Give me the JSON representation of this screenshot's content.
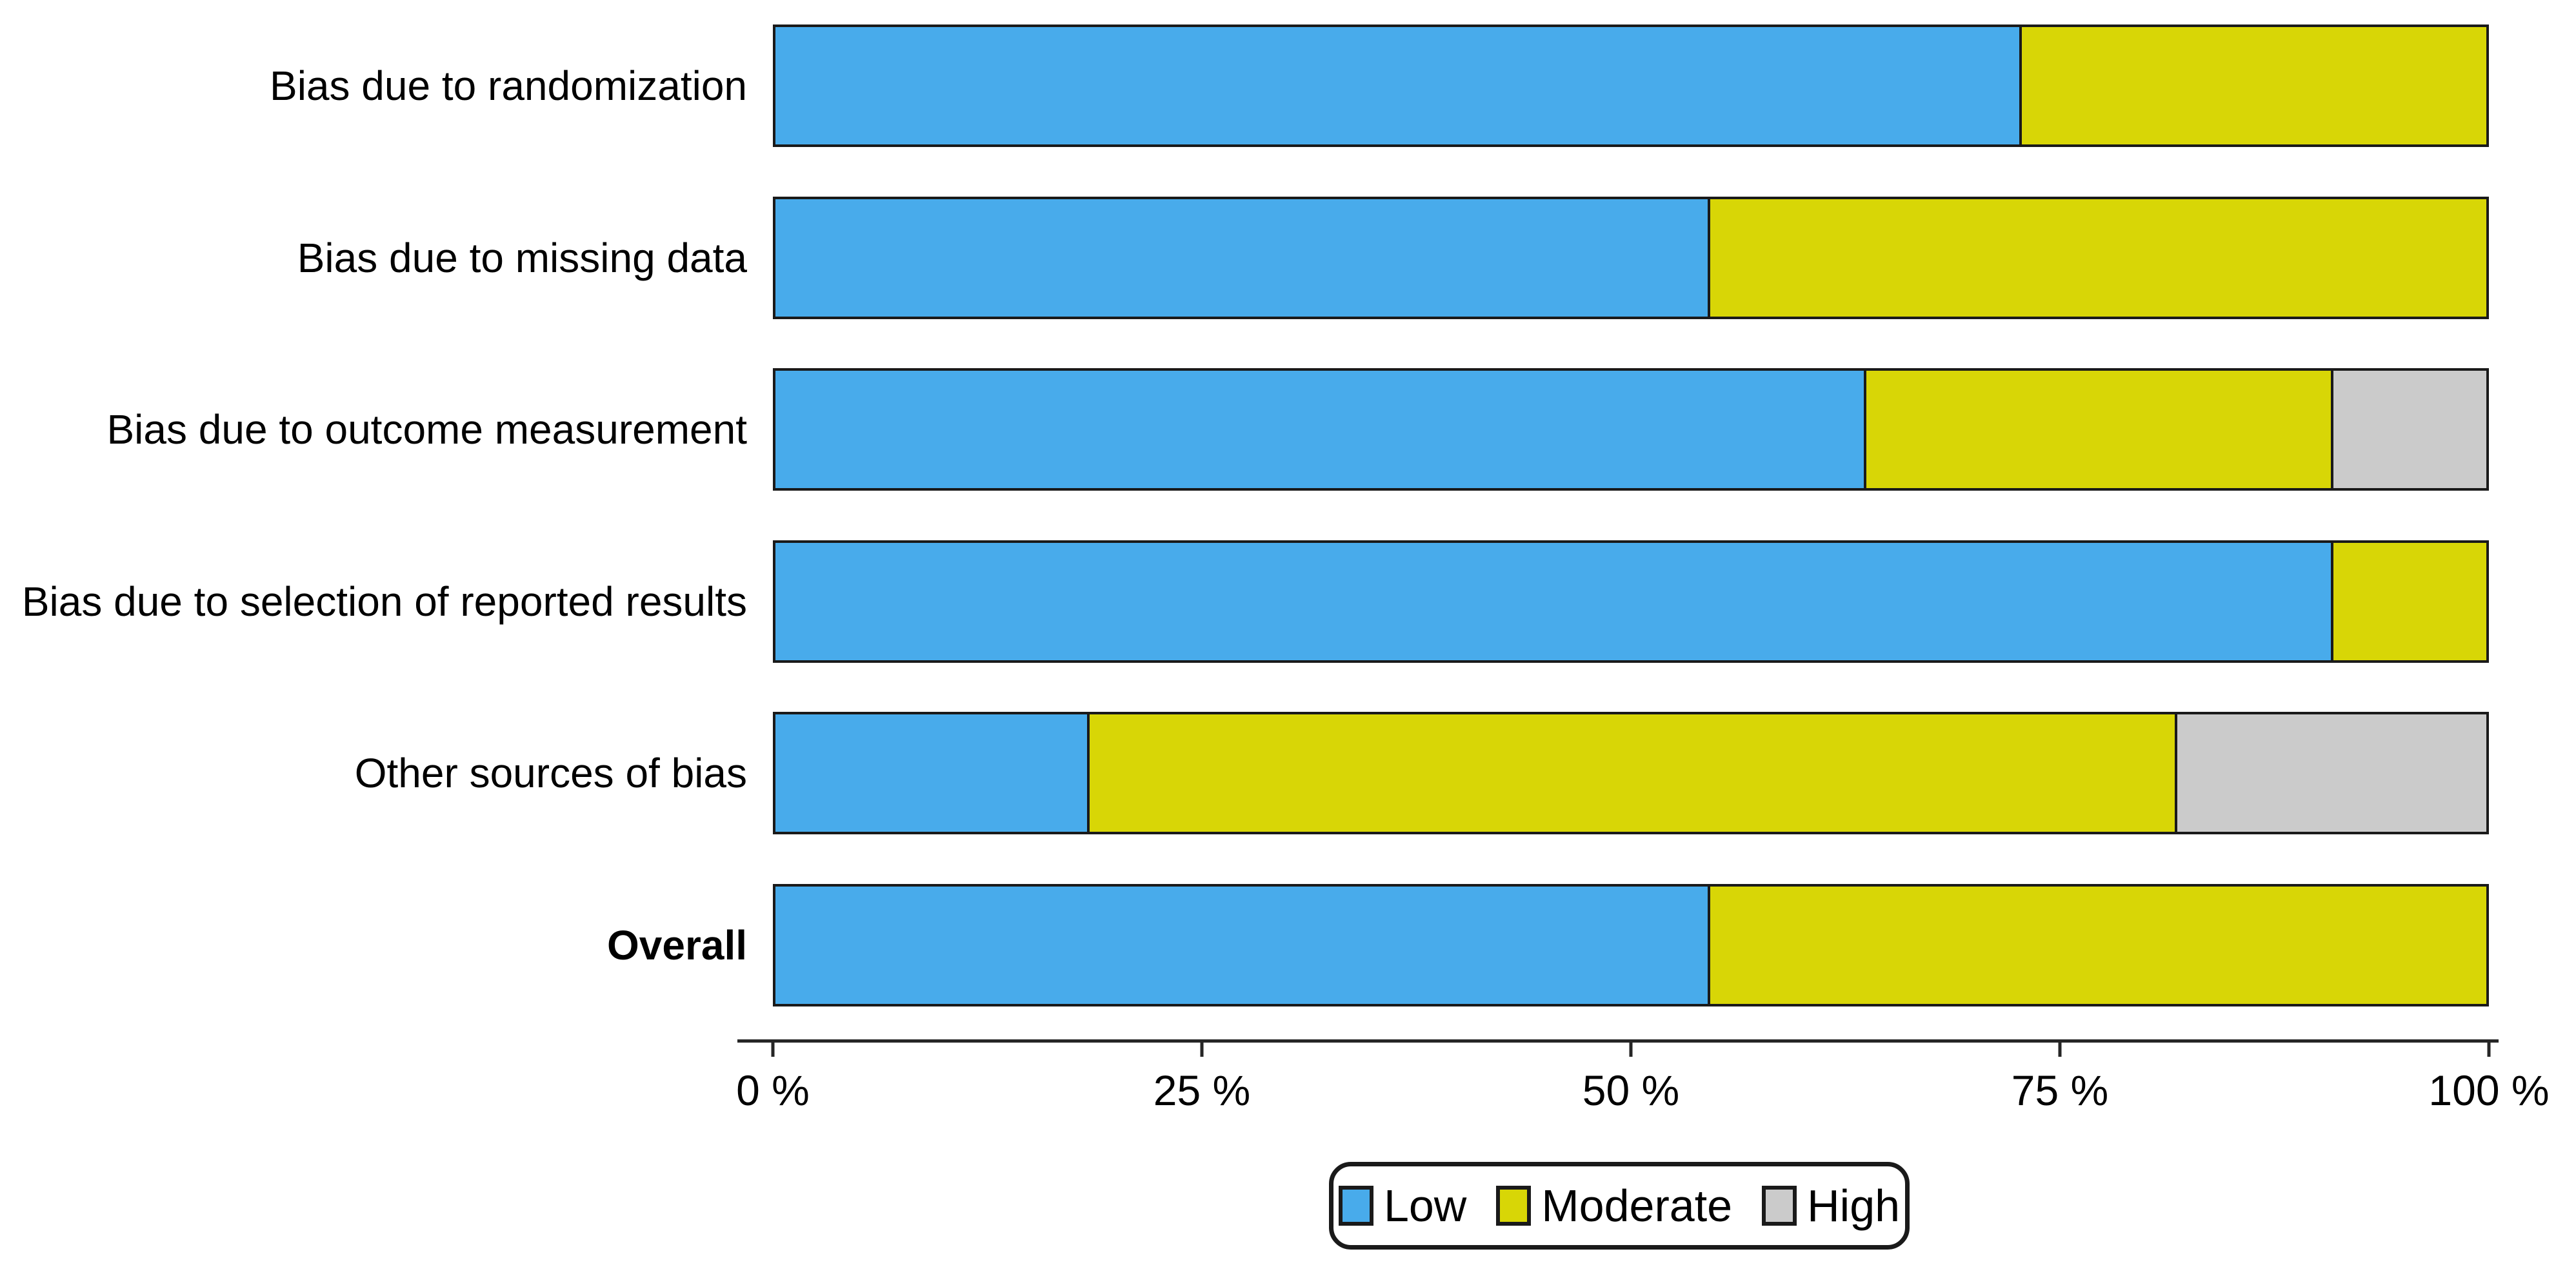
{
  "chart_data": {
    "type": "bar",
    "orientation": "horizontal",
    "stacked": true,
    "unit": "percent",
    "categories": [
      "Bias due to randomization",
      "Bias due to missing data",
      "Bias due to outcome measurement",
      "Bias due to selection of reported results",
      "Other sources of bias",
      "Overall"
    ],
    "bold_category": "Overall",
    "series": [
      {
        "name": "Low",
        "color": "#48ABEB",
        "values": [
          72.7,
          54.5,
          63.6,
          90.9,
          18.2,
          54.5
        ]
      },
      {
        "name": "Moderate",
        "color": "#D8D606",
        "values": [
          27.3,
          45.5,
          27.3,
          9.1,
          63.6,
          45.5
        ]
      },
      {
        "name": "High",
        "color": "#CBCBCB",
        "values": [
          0.0,
          0.0,
          9.1,
          0.0,
          18.2,
          0.0
        ]
      }
    ],
    "x_axis": {
      "min": 0,
      "max": 100,
      "tick_values": [
        0,
        25,
        50,
        75,
        100
      ],
      "tick_labels": [
        "0 %",
        "25 %",
        "50 %",
        "75 %",
        "100 %"
      ]
    },
    "legend": {
      "position": "bottom",
      "entries": [
        "Low",
        "Moderate",
        "High"
      ]
    },
    "grid": false,
    "colors": {
      "bar_border": "#1A1A1A",
      "axis": "#262626",
      "background": "#FFFFFF",
      "text": "#000000"
    }
  }
}
